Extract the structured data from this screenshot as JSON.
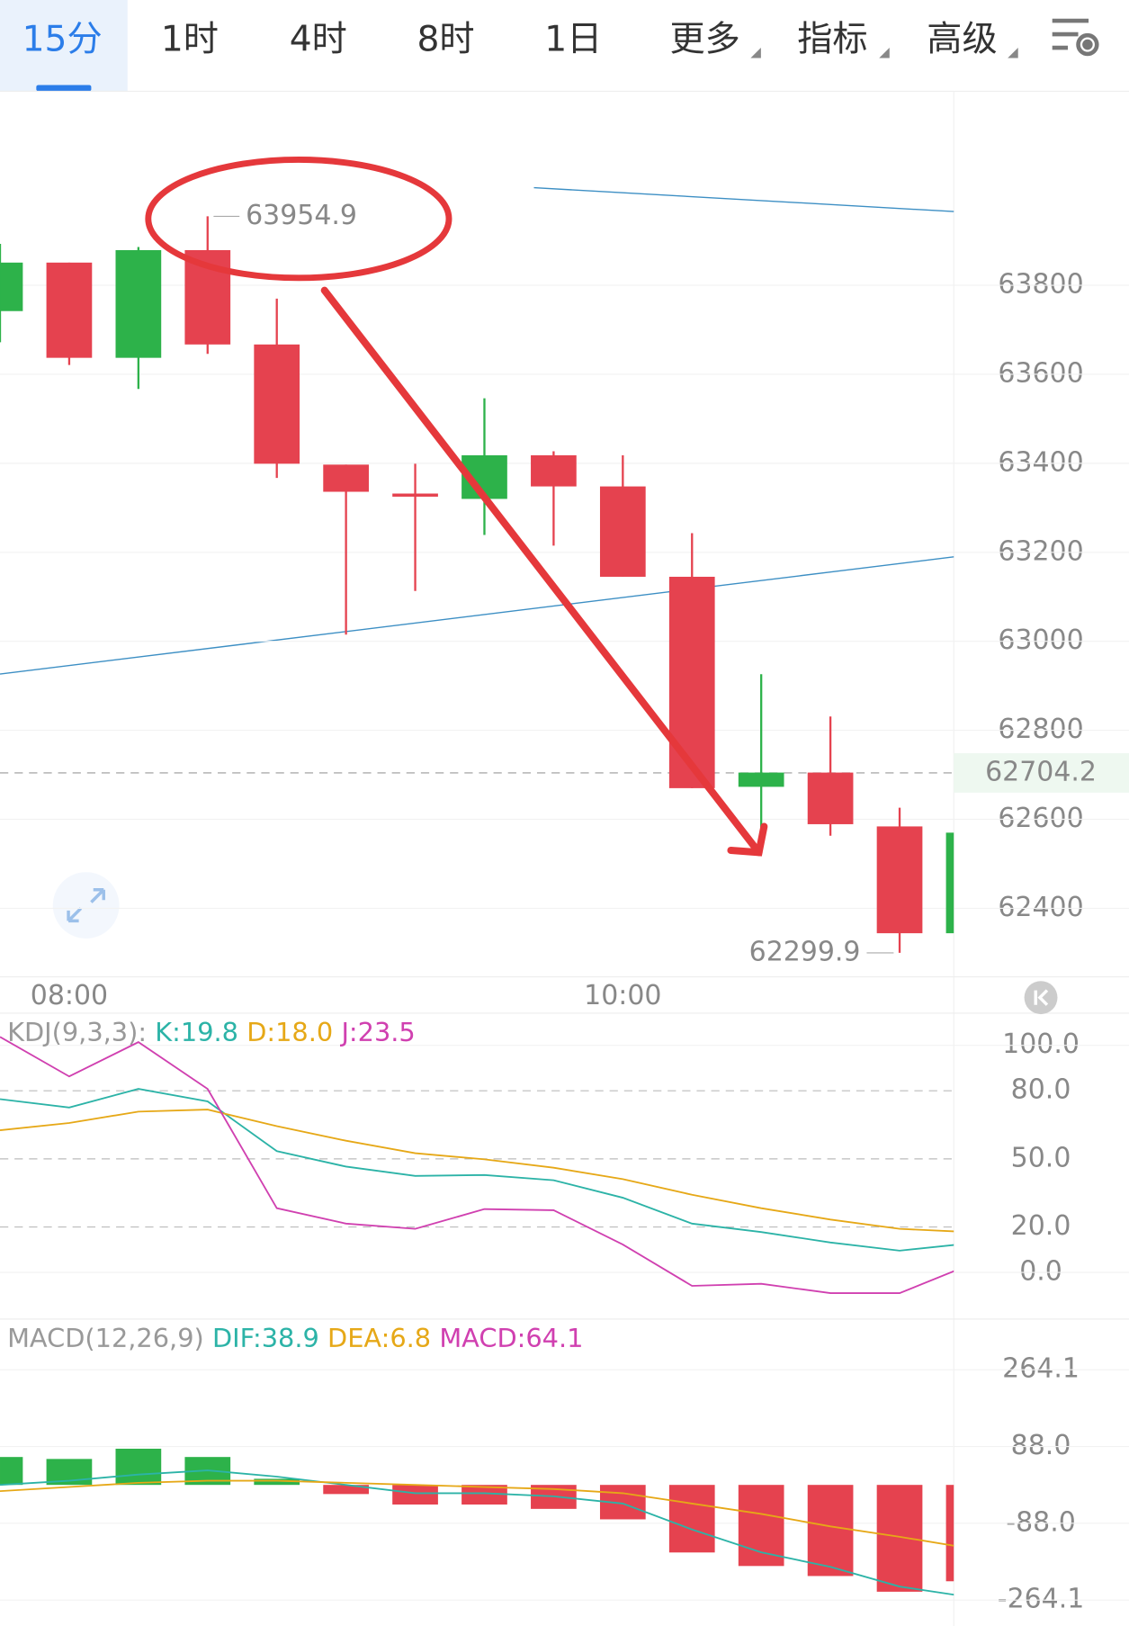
{
  "tabs": {
    "items": [
      "15分",
      "1时",
      "4时",
      "8时",
      "1日",
      "更多",
      "指标",
      "高级"
    ],
    "active": 0
  },
  "chart_data": [
    {
      "type": "candlestick",
      "categories": [
        null,
        "08:00",
        null,
        null,
        null,
        null,
        null,
        null,
        null,
        "10:00",
        null,
        null,
        null,
        null,
        null
      ],
      "open": [
        63742,
        63851,
        63637,
        63879,
        63667,
        63397,
        63332,
        63320,
        63418,
        63348,
        63145,
        62673,
        62705,
        62584,
        62344
      ],
      "high": [
        63893,
        63851,
        63886,
        63954.9,
        63770,
        63397,
        63399,
        63546,
        63427,
        63418,
        63243,
        62926,
        62831,
        62626,
        62570
      ],
      "low": [
        63672,
        63621,
        63567,
        63646,
        63367,
        63015,
        63113,
        63239,
        63215,
        63145,
        62670,
        62577,
        62563,
        62299.9,
        62344
      ],
      "close": [
        63851,
        63637,
        63879,
        63667,
        63399,
        63336,
        63325,
        63418,
        63348,
        63145,
        62670,
        62705,
        62589,
        62344,
        62570
      ],
      "up_color": "#2db24a",
      "down_color": "#e5424f",
      "ylim": [
        62246,
        64236
      ],
      "yticks": [
        62400,
        62600,
        62800,
        63000,
        63200,
        63400,
        63600,
        63800
      ],
      "grid": true,
      "high_label": 63954.9,
      "low_label": 62299.9,
      "last_price": 62704.2
    },
    {
      "type": "line",
      "title": "KDJ(9,3,3):",
      "series": [
        {
          "name": "K:19.8",
          "color": "#2cb3a7",
          "values": [
            76.3,
            72.6,
            80.8,
            75.3,
            53.4,
            46.6,
            42.5,
            42.9,
            40.6,
            32.9,
            21.5,
            17.8,
            13.2,
            9.6,
            12.8
          ]
        },
        {
          "name": "D:18.0",
          "color": "#e6a817",
          "values": [
            62.6,
            65.8,
            70.8,
            71.7,
            64.4,
            58.0,
            52.5,
            49.8,
            46.1,
            41.1,
            34.2,
            28.3,
            23.3,
            19.2,
            17.8
          ]
        },
        {
          "name": "J:23.5",
          "color": "#d040b0",
          "values": [
            103.7,
            86.3,
            101.4,
            80.8,
            28.3,
            21.5,
            19.2,
            27.9,
            27.4,
            12.3,
            -5.9,
            -5.0,
            -9.1,
            -9.1,
            3.2
          ]
        }
      ],
      "ylim": [
        -19.6,
        113.7
      ],
      "yticks": [
        {
          "value": 0,
          "label": "0.0"
        },
        {
          "value": 20,
          "label": "20.0"
        },
        {
          "value": 50,
          "label": "50.0"
        },
        {
          "value": 80,
          "label": "80.0"
        },
        {
          "value": 100,
          "label": "100.0"
        }
      ]
    },
    {
      "type": "macd",
      "title": "MACD(12,26,9)",
      "up_color": "#2db24a",
      "down_color": "#e5424f",
      "series": [
        {
          "name": "DIF:38.9",
          "color": "#2cb3a7",
          "values": [
            0,
            9.5,
            23.8,
            33.3,
            19.0,
            0,
            -19.0,
            -19.0,
            -26.2,
            -42.8,
            -102.3,
            -154.7,
            -188.0,
            -233.2,
            -257.0
          ]
        },
        {
          "name": "DEA:6.8",
          "color": "#e6a817",
          "values": [
            -14.3,
            -4.8,
            4.8,
            9.5,
            9.5,
            4.8,
            0,
            -4.8,
            -9.5,
            -19.0,
            -42.8,
            -66.6,
            -95.2,
            -119.0,
            -145.2
          ]
        },
        {
          "name": "MACD:64.1",
          "color": "#d040b0",
          "type": "bar",
          "values": [
            64,
            59.5,
            83,
            64,
            14,
            -21,
            -45,
            -45,
            -55,
            -79,
            -155,
            -186,
            -209,
            -245,
            -221
          ]
        }
      ],
      "ylim": [
        -304.6,
        290
      ],
      "yticks": [
        {
          "value": -264.1,
          "label": "-264.1"
        },
        {
          "value": -88,
          "label": "-88.0"
        },
        {
          "value": 88,
          "label": "88.0"
        },
        {
          "value": 264.1,
          "label": "264.1"
        }
      ]
    }
  ]
}
